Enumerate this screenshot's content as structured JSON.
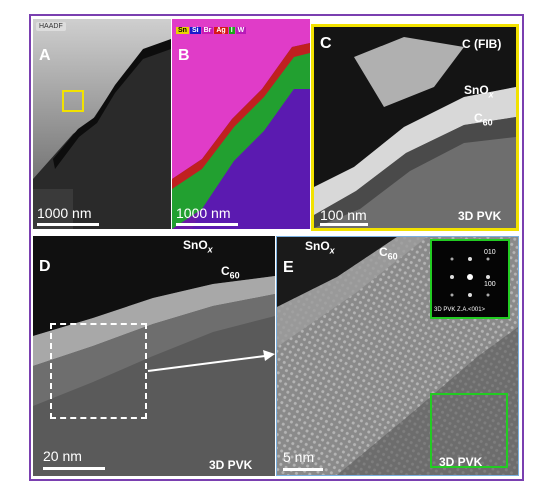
{
  "panels": {
    "a": {
      "label": "A",
      "badge": "HAADF",
      "scale": "1000 nm"
    },
    "b": {
      "label": "B",
      "scale": "1000 nm",
      "legend": [
        {
          "text": "Sn",
          "color": "#e8d400"
        },
        {
          "text": "Si",
          "color": "#1a1acc"
        },
        {
          "text": "Br",
          "color": "#c81ab4"
        },
        {
          "text": "Ag",
          "color": "#d81818"
        },
        {
          "text": "I",
          "color": "#1aa81a"
        },
        {
          "text": "W",
          "color": "#b81ab8"
        }
      ]
    },
    "c": {
      "label": "C",
      "title": "C (FIB)",
      "sno": "SnO",
      "sno_sub": "x",
      "c60": "C",
      "c60_sub": "60",
      "scale": "100 nm",
      "pvk": "3D PVK"
    },
    "d": {
      "label": "D",
      "sno": "SnO",
      "sno_sub": "x",
      "c60": "C",
      "c60_sub": "60",
      "scale": "20 nm",
      "pvk": "3D PVK"
    },
    "e": {
      "label": "E",
      "sno": "SnO",
      "sno_sub": "x",
      "c60": "C",
      "c60_sub": "60",
      "scale": "5 nm",
      "pvk": "3D PVK",
      "fft_010": "010",
      "fft_100": "100",
      "fft_caption": "3D PVK Z.A.<001>"
    }
  },
  "colors": {
    "frame": "#7a3fb0",
    "highlight_yellow": "#f2e200",
    "highlight_green": "#22cc22",
    "panel_e_border": "#7ab0e0"
  }
}
